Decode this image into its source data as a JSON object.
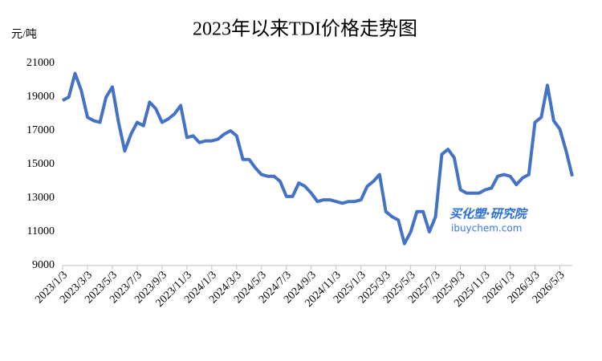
{
  "chart_data": {
    "type": "line",
    "title": "2023年以来TDI价格走势图",
    "y_label": "元/吨",
    "annotations": [
      "买化塑·研究院",
      "ibuychem.com"
    ],
    "categories": [
      "2023/1/3",
      null,
      null,
      null,
      "2023/3/3",
      null,
      null,
      null,
      "2023/5/3",
      null,
      null,
      null,
      "2023/7/3",
      null,
      null,
      null,
      "2023/9/3",
      null,
      null,
      null,
      "2023/11/3",
      null,
      null,
      null,
      "2024/1/3",
      null,
      null,
      null,
      "2024/3/3",
      null,
      null,
      null,
      "2024/5/3",
      null,
      null,
      null,
      "2024/7/3",
      null,
      null,
      null,
      "2024/9/3",
      null,
      null,
      null,
      "2024/11/3",
      null,
      null,
      null,
      "2025/1/3",
      null,
      null,
      null,
      "2025/3/3",
      null,
      null,
      null,
      "2025/5/3",
      null,
      null,
      null,
      "2025/7/3",
      null,
      null,
      null,
      "2025/9/3",
      null,
      null,
      null,
      "2025/11/3",
      null,
      null,
      null,
      "2026/1/3",
      null,
      null,
      null,
      "2026/3/3",
      null,
      null,
      null,
      "2026/5/3",
      null,
      null
    ],
    "series": [
      {
        "name": "TDI",
        "color": "#4472c4",
        "values": [
          18800,
          19000,
          20400,
          19400,
          17800,
          17600,
          17500,
          19000,
          19600,
          17500,
          15800,
          16800,
          17500,
          17300,
          18700,
          18300,
          17500,
          17700,
          18000,
          18500,
          16600,
          16700,
          16300,
          16400,
          16400,
          16500,
          16800,
          17000,
          16700,
          15300,
          15300,
          14800,
          14400,
          14300,
          14300,
          14000,
          13100,
          13100,
          13900,
          13700,
          13300,
          12800,
          12900,
          12900,
          12800,
          12700,
          12800,
          12800,
          12900,
          13700,
          14000,
          14400,
          12200,
          11900,
          11700,
          10300,
          11000,
          12200,
          12200,
          11000,
          11900,
          15600,
          15900,
          15400,
          13500,
          13300,
          13300,
          13300,
          13500,
          13600,
          14300,
          14400,
          14300,
          13800,
          14200,
          14400,
          17500,
          17800,
          19700,
          17600,
          17100,
          15800,
          14300
        ]
      }
    ],
    "ylim": [
      9000,
      21000
    ],
    "yticks": [
      9000,
      11000,
      13000,
      15000,
      17000,
      19000,
      21000
    ],
    "grid": false
  }
}
